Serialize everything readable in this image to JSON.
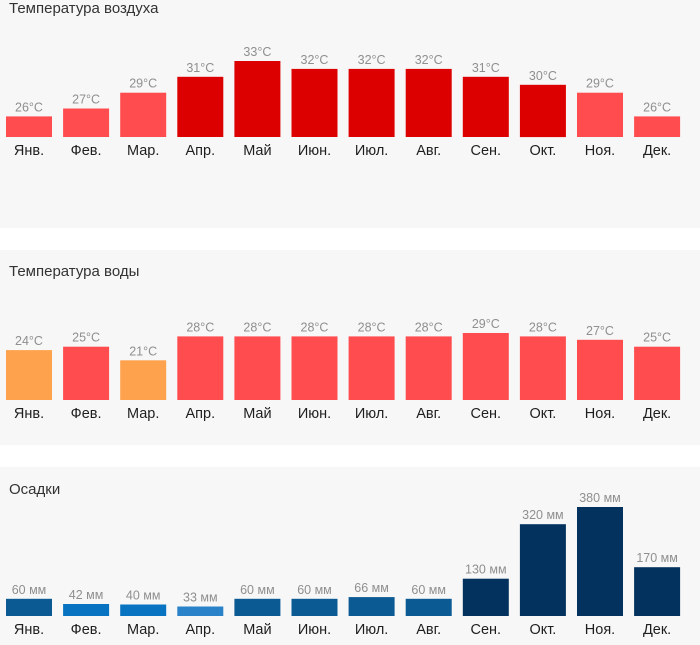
{
  "colors": {
    "hot": "#dd0000",
    "warm": "#ff4d4f",
    "mild": "#ffa24d",
    "rain_light": "#2a82c8",
    "rain_mid": "#0873c0",
    "rain_medium": "#0b5a93",
    "rain_heavy": "#04325f"
  },
  "chart_data": [
    {
      "type": "bar",
      "title": "Температура воздуха",
      "categories": [
        "Янв.",
        "Фев.",
        "Мар.",
        "Апр.",
        "Май",
        "Июн.",
        "Июл.",
        "Авг.",
        "Сен.",
        "Окт.",
        "Ноя.",
        "Дек."
      ],
      "values": [
        26,
        27,
        29,
        31,
        33,
        32,
        32,
        32,
        31,
        30,
        29,
        26
      ],
      "labels": [
        "26°C",
        "27°C",
        "29°C",
        "31°C",
        "33°C",
        "32°C",
        "32°C",
        "32°C",
        "31°C",
        "30°C",
        "29°C",
        "26°C"
      ],
      "colors": [
        "warm",
        "warm",
        "warm",
        "hot",
        "hot",
        "hot",
        "hot",
        "hot",
        "hot",
        "hot",
        "warm",
        "warm"
      ],
      "unit": "°C",
      "ylim": [
        23.4,
        33
      ]
    },
    {
      "type": "bar",
      "title": "Температура воды",
      "categories": [
        "Янв.",
        "Фев.",
        "Мар.",
        "Апр.",
        "Май",
        "Июн.",
        "Июл.",
        "Авг.",
        "Сен.",
        "Окт.",
        "Ноя.",
        "Дек."
      ],
      "values": [
        24,
        25,
        21,
        28,
        28,
        28,
        28,
        28,
        29,
        28,
        27,
        25
      ],
      "labels": [
        "24°C",
        "25°C",
        "21°C",
        "28°C",
        "28°C",
        "28°C",
        "28°C",
        "28°C",
        "29°C",
        "28°C",
        "27°C",
        "25°C"
      ],
      "colors": [
        "mild",
        "warm",
        "mild",
        "warm",
        "warm",
        "warm",
        "warm",
        "warm",
        "warm",
        "warm",
        "warm",
        "warm"
      ],
      "unit": "°C",
      "ylim": [
        9.4,
        29
      ]
    },
    {
      "type": "bar",
      "title": "Осадки",
      "categories": [
        "Янв.",
        "Фев.",
        "Мар.",
        "Апр.",
        "Май",
        "Июн.",
        "Июл.",
        "Авг.",
        "Сен.",
        "Окт.",
        "Ноя.",
        "Дек."
      ],
      "values": [
        60,
        42,
        40,
        33,
        60,
        60,
        66,
        60,
        130,
        320,
        380,
        170
      ],
      "labels": [
        "60 мм",
        "42 мм",
        "40 мм",
        "33 мм",
        "60 мм",
        "60 мм",
        "66 мм",
        "60 мм",
        "130 мм",
        "320 мм",
        "380 мм",
        "170 мм"
      ],
      "colors": [
        "rain_medium",
        "rain_mid",
        "rain_mid",
        "rain_light",
        "rain_medium",
        "rain_medium",
        "rain_medium",
        "rain_medium",
        "rain_heavy",
        "rain_heavy",
        "rain_heavy",
        "rain_heavy"
      ],
      "unit": "мм",
      "ylim": [
        0,
        380
      ]
    }
  ]
}
